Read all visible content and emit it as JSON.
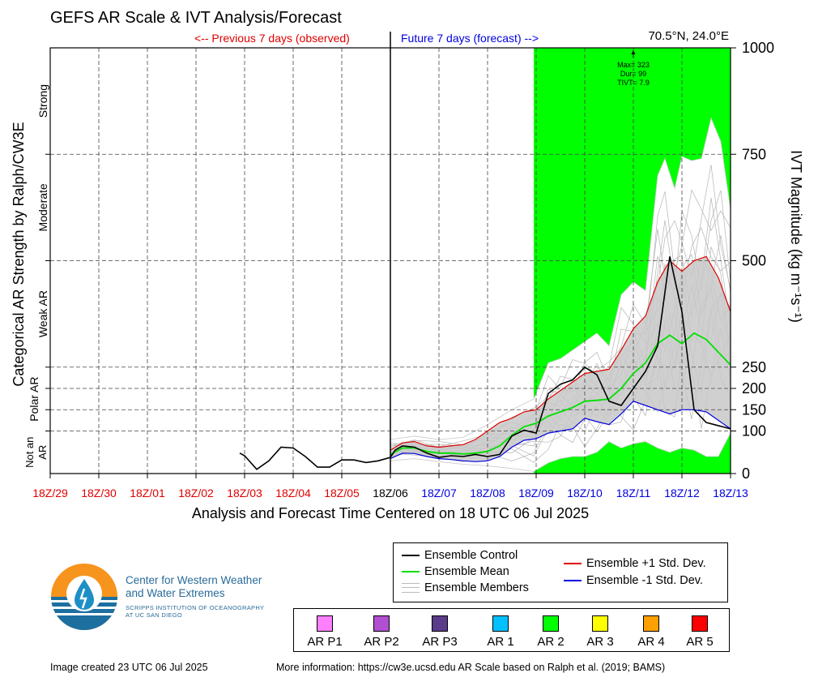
{
  "title": "GEFS AR Scale & IVT Analysis/Forecast",
  "location": "70.5°N, 24.0°E",
  "prev_label": "<-- Previous 7 days (observed)",
  "future_label": "Future 7 days (forecast) -->",
  "xlabel": "Analysis and Forecast Time Centered on 18 UTC 06 Jul 2025",
  "ylabel_left": "Categorical AR Strength by Ralph/CW3E",
  "ylabel_right": "IVT Magnitude (kg m⁻¹s⁻¹)",
  "annotation": [
    "Max= 323",
    "Dur= 99",
    "TIVT= 7.9"
  ],
  "legend": {
    "control": "Ensemble Control",
    "mean": "Ensemble Mean",
    "members": "Ensemble Members",
    "plus": "Ensemble +1 Std. Dev.",
    "minus": "Ensemble -1 Std. Dev."
  },
  "ar_scale": [
    {
      "label": "AR P1",
      "color": "#ff80ff"
    },
    {
      "label": "AR P2",
      "color": "#b050d0"
    },
    {
      "label": "AR P3",
      "color": "#5a3c8a"
    },
    {
      "label": "AR 1",
      "color": "#00c0ff"
    },
    {
      "label": "AR 2",
      "color": "#00ff00"
    },
    {
      "label": "AR 3",
      "color": "#ffff00"
    },
    {
      "label": "AR 4",
      "color": "#ffa000"
    },
    {
      "label": "AR 5",
      "color": "#ff0000"
    }
  ],
  "logo": {
    "line1": "Center for Western Weather",
    "line2": "and Water Extremes",
    "sub1": "SCRIPPS INSTITUTION OF OCEANOGRAPHY",
    "sub2": "AT UC SAN DIEGO"
  },
  "footer_left": "Image created 23 UTC 06 Jul 2025",
  "footer_right": "More information: https://cw3e.ucsd.edu AR Scale based on Ralph et al. (2019; BAMS)",
  "chart_data": {
    "type": "line",
    "x_ticks": [
      "18Z/29",
      "18Z/30",
      "18Z/01",
      "18Z/02",
      "18Z/03",
      "18Z/04",
      "18Z/05",
      "18Z/06",
      "18Z/07",
      "18Z/08",
      "18Z/09",
      "18Z/10",
      "18Z/11",
      "18Z/12",
      "18Z/13"
    ],
    "x_tick_colors": [
      "#e00000",
      "#e00000",
      "#e00000",
      "#e00000",
      "#e00000",
      "#e00000",
      "#e00000",
      "#000000",
      "#0000e0",
      "#0000e0",
      "#0000e0",
      "#0000e0",
      "#0000e0",
      "#0000e0",
      "#0000e0"
    ],
    "y_ticks": [
      0,
      100,
      150,
      200,
      250,
      500,
      750,
      1000
    ],
    "ylim": [
      0,
      1000
    ],
    "xlim_days": [
      0,
      14
    ],
    "categories": [
      {
        "label": "Not an AR",
        "y": 50
      },
      {
        "label": "Polar AR",
        "y": 175
      },
      {
        "label": "Weak AR",
        "y": 375
      },
      {
        "label": "Moderate",
        "y": 625
      },
      {
        "label": "Strong",
        "y": 875
      }
    ],
    "ar2_shading": {
      "from_day": 9.95,
      "to_day": 14,
      "color": "#00ff00"
    },
    "control": [
      [
        3.9,
        48
      ],
      [
        4.0,
        42
      ],
      [
        4.25,
        10
      ],
      [
        4.5,
        30
      ],
      [
        4.75,
        62
      ],
      [
        5.0,
        60
      ],
      [
        5.25,
        40
      ],
      [
        5.5,
        15
      ],
      [
        5.75,
        15
      ],
      [
        6.0,
        32
      ],
      [
        6.25,
        32
      ],
      [
        6.5,
        26
      ],
      [
        6.75,
        30
      ],
      [
        7.0,
        38
      ],
      [
        7.1,
        55
      ],
      [
        7.25,
        65
      ],
      [
        7.5,
        62
      ],
      [
        7.75,
        48
      ],
      [
        8.0,
        38
      ],
      [
        8.25,
        42
      ],
      [
        8.5,
        40
      ],
      [
        8.75,
        45
      ],
      [
        9.0,
        40
      ],
      [
        9.25,
        45
      ],
      [
        9.5,
        88
      ],
      [
        9.75,
        102
      ],
      [
        10.0,
        95
      ],
      [
        10.25,
        188
      ],
      [
        10.5,
        210
      ],
      [
        10.75,
        220
      ],
      [
        11.0,
        250
      ],
      [
        11.25,
        232
      ],
      [
        11.5,
        170
      ],
      [
        11.75,
        160
      ],
      [
        12.0,
        200
      ],
      [
        12.25,
        240
      ],
      [
        12.5,
        300
      ],
      [
        12.75,
        510
      ],
      [
        13.0,
        380
      ],
      [
        13.25,
        150
      ],
      [
        13.5,
        120
      ],
      [
        14.0,
        105
      ]
    ],
    "mean": [
      [
        7.0,
        45
      ],
      [
        7.25,
        60
      ],
      [
        7.5,
        60
      ],
      [
        7.75,
        52
      ],
      [
        8.0,
        48
      ],
      [
        8.25,
        48
      ],
      [
        8.5,
        46
      ],
      [
        8.75,
        48
      ],
      [
        9.0,
        52
      ],
      [
        9.25,
        65
      ],
      [
        9.5,
        90
      ],
      [
        9.75,
        110
      ],
      [
        10.0,
        118
      ],
      [
        10.25,
        135
      ],
      [
        10.5,
        145
      ],
      [
        10.75,
        155
      ],
      [
        11.0,
        170
      ],
      [
        11.25,
        172
      ],
      [
        11.5,
        175
      ],
      [
        11.75,
        200
      ],
      [
        12.0,
        235
      ],
      [
        12.25,
        260
      ],
      [
        12.5,
        305
      ],
      [
        12.75,
        325
      ],
      [
        13.0,
        305
      ],
      [
        13.25,
        330
      ],
      [
        13.5,
        315
      ],
      [
        13.75,
        285
      ],
      [
        14.0,
        255
      ]
    ],
    "plus": [
      [
        7.0,
        55
      ],
      [
        7.25,
        72
      ],
      [
        7.5,
        75
      ],
      [
        7.75,
        65
      ],
      [
        8.0,
        62
      ],
      [
        8.25,
        65
      ],
      [
        8.5,
        68
      ],
      [
        8.75,
        80
      ],
      [
        9.0,
        100
      ],
      [
        9.25,
        120
      ],
      [
        9.5,
        130
      ],
      [
        9.75,
        145
      ],
      [
        10.0,
        150
      ],
      [
        10.25,
        175
      ],
      [
        10.5,
        195
      ],
      [
        10.75,
        215
      ],
      [
        11.0,
        235
      ],
      [
        11.25,
        240
      ],
      [
        11.5,
        245
      ],
      [
        11.75,
        290
      ],
      [
        12.0,
        340
      ],
      [
        12.25,
        370
      ],
      [
        12.5,
        450
      ],
      [
        12.75,
        500
      ],
      [
        13.0,
        475
      ],
      [
        13.25,
        500
      ],
      [
        13.5,
        510
      ],
      [
        13.75,
        460
      ],
      [
        14.0,
        380
      ]
    ],
    "minus": [
      [
        7.0,
        35
      ],
      [
        7.25,
        48
      ],
      [
        7.5,
        47
      ],
      [
        7.75,
        40
      ],
      [
        8.0,
        35
      ],
      [
        8.25,
        33
      ],
      [
        8.5,
        30
      ],
      [
        8.75,
        28
      ],
      [
        9.0,
        30
      ],
      [
        9.25,
        40
      ],
      [
        9.5,
        62
      ],
      [
        9.75,
        78
      ],
      [
        10.0,
        82
      ],
      [
        10.25,
        95
      ],
      [
        10.5,
        100
      ],
      [
        10.75,
        105
      ],
      [
        11.0,
        130
      ],
      [
        11.25,
        122
      ],
      [
        11.5,
        115
      ],
      [
        11.75,
        140
      ],
      [
        12.0,
        170
      ],
      [
        12.25,
        160
      ],
      [
        12.5,
        150
      ],
      [
        12.75,
        140
      ],
      [
        13.0,
        150
      ],
      [
        13.25,
        150
      ],
      [
        13.5,
        145
      ],
      [
        13.75,
        125
      ],
      [
        14.0,
        105
      ]
    ],
    "members_upper": [
      [
        7.0,
        80
      ],
      [
        7.5,
        88
      ],
      [
        8.0,
        80
      ],
      [
        8.5,
        85
      ],
      [
        9.0,
        115
      ],
      [
        9.5,
        150
      ],
      [
        9.95,
        175
      ],
      [
        10.25,
        260
      ],
      [
        10.5,
        270
      ],
      [
        10.75,
        290
      ],
      [
        11.0,
        310
      ],
      [
        11.25,
        330
      ],
      [
        11.5,
        300
      ],
      [
        11.75,
        420
      ],
      [
        12.0,
        450
      ],
      [
        12.25,
        430
      ],
      [
        12.5,
        700
      ],
      [
        12.65,
        740
      ],
      [
        12.85,
        670
      ],
      [
        13.0,
        745
      ],
      [
        13.2,
        735
      ],
      [
        13.4,
        740
      ],
      [
        13.6,
        835
      ],
      [
        13.8,
        780
      ],
      [
        14.0,
        620
      ]
    ],
    "members_lower": [
      [
        7.0,
        30
      ],
      [
        7.5,
        35
      ],
      [
        8.0,
        28
      ],
      [
        8.5,
        22
      ],
      [
        9.0,
        18
      ],
      [
        9.5,
        12
      ],
      [
        9.95,
        5
      ],
      [
        10.25,
        25
      ],
      [
        10.5,
        35
      ],
      [
        10.75,
        40
      ],
      [
        11.0,
        40
      ],
      [
        11.25,
        50
      ],
      [
        11.5,
        75
      ],
      [
        11.75,
        60
      ],
      [
        12.0,
        70
      ],
      [
        12.25,
        75
      ],
      [
        12.5,
        60
      ],
      [
        12.75,
        50
      ],
      [
        13.0,
        60
      ],
      [
        13.25,
        55
      ],
      [
        13.5,
        40
      ],
      [
        13.75,
        40
      ],
      [
        14.0,
        95
      ]
    ]
  }
}
